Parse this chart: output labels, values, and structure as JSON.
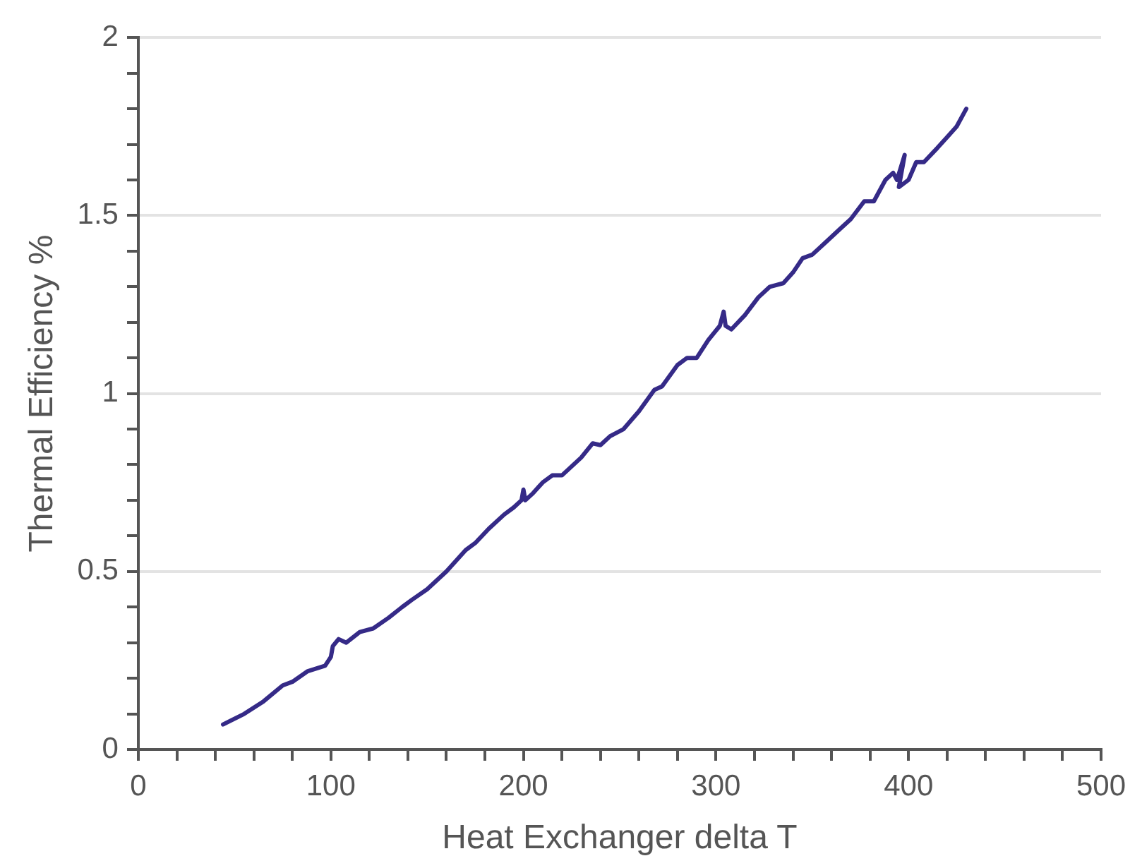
{
  "chart_data": {
    "type": "line",
    "xlabel": "Heat Exchanger delta T",
    "ylabel": "Thermal Efficiency %",
    "series": [
      {
        "color": "#352a87",
        "x": [
          44,
          55,
          65,
          75,
          80,
          88,
          97,
          100,
          101,
          104,
          108,
          115,
          122,
          130,
          137,
          142,
          150,
          160,
          170,
          175,
          182,
          190,
          195,
          199,
          200,
          201,
          205,
          210,
          215,
          220,
          230,
          236,
          240,
          245,
          252,
          260,
          268,
          272,
          280,
          285,
          290,
          296,
          302,
          304,
          305,
          308,
          315,
          322,
          328,
          335,
          340,
          345,
          350,
          358,
          364,
          370,
          377,
          382,
          388,
          392,
          394,
          398,
          395,
          400,
          404,
          408,
          415,
          420,
          425,
          430
        ],
        "values": [
          0.07,
          0.1,
          0.135,
          0.18,
          0.19,
          0.22,
          0.235,
          0.26,
          0.29,
          0.31,
          0.3,
          0.33,
          0.34,
          0.37,
          0.4,
          0.42,
          0.45,
          0.5,
          0.56,
          0.58,
          0.62,
          0.66,
          0.68,
          0.7,
          0.73,
          0.7,
          0.72,
          0.75,
          0.77,
          0.77,
          0.82,
          0.86,
          0.855,
          0.88,
          0.9,
          0.95,
          1.01,
          1.02,
          1.08,
          1.1,
          1.1,
          1.15,
          1.19,
          1.23,
          1.19,
          1.18,
          1.22,
          1.27,
          1.3,
          1.31,
          1.34,
          1.38,
          1.39,
          1.43,
          1.46,
          1.49,
          1.54,
          1.54,
          1.6,
          1.62,
          1.6,
          1.67,
          1.58,
          1.6,
          1.65,
          1.65,
          1.69,
          1.72,
          1.75,
          1.8
        ]
      }
    ],
    "xlim": [
      0,
      500
    ],
    "xticks": [
      0,
      {
        "value": 20,
        "label": null
      },
      {
        "value": 40,
        "label": null
      },
      {
        "value": 60,
        "label": null
      },
      {
        "value": 80,
        "label": null
      },
      100,
      {
        "value": 120,
        "label": null
      },
      {
        "value": 140,
        "label": null
      },
      {
        "value": 160,
        "label": null
      },
      {
        "value": 180,
        "label": null
      },
      200,
      {
        "value": 220,
        "label": null
      },
      {
        "value": 240,
        "label": null
      },
      {
        "value": 260,
        "label": null
      },
      {
        "value": 280,
        "label": null
      },
      300,
      {
        "value": 320,
        "label": null
      },
      {
        "value": 340,
        "label": null
      },
      {
        "value": 360,
        "label": null
      },
      {
        "value": 380,
        "label": null
      },
      400,
      {
        "value": 420,
        "label": null
      },
      {
        "value": 440,
        "label": null
      },
      {
        "value": 460,
        "label": null
      },
      {
        "value": 480,
        "label": null
      },
      500
    ],
    "ylim": [
      0,
      2
    ],
    "yticks": [
      0,
      {
        "value": 0.1,
        "label": null
      },
      {
        "value": 0.2,
        "label": null
      },
      {
        "value": 0.3,
        "label": null
      },
      {
        "value": 0.4,
        "label": null
      },
      0.5,
      {
        "value": 0.6,
        "label": null
      },
      {
        "value": 0.7,
        "label": null
      },
      {
        "value": 0.8,
        "label": null
      },
      {
        "value": 0.9,
        "label": null
      },
      1,
      {
        "value": 1.1,
        "label": null
      },
      {
        "value": 1.2,
        "label": null
      },
      {
        "value": 1.3,
        "label": null
      },
      {
        "value": 1.4,
        "label": null
      },
      1.5,
      {
        "value": 1.6,
        "label": null
      },
      {
        "value": 1.7,
        "label": null
      },
      {
        "value": 1.8,
        "label": null
      },
      {
        "value": 1.9,
        "label": null
      },
      2
    ],
    "grid": "y",
    "legend": false,
    "marker": "none",
    "line_style": "solid"
  }
}
